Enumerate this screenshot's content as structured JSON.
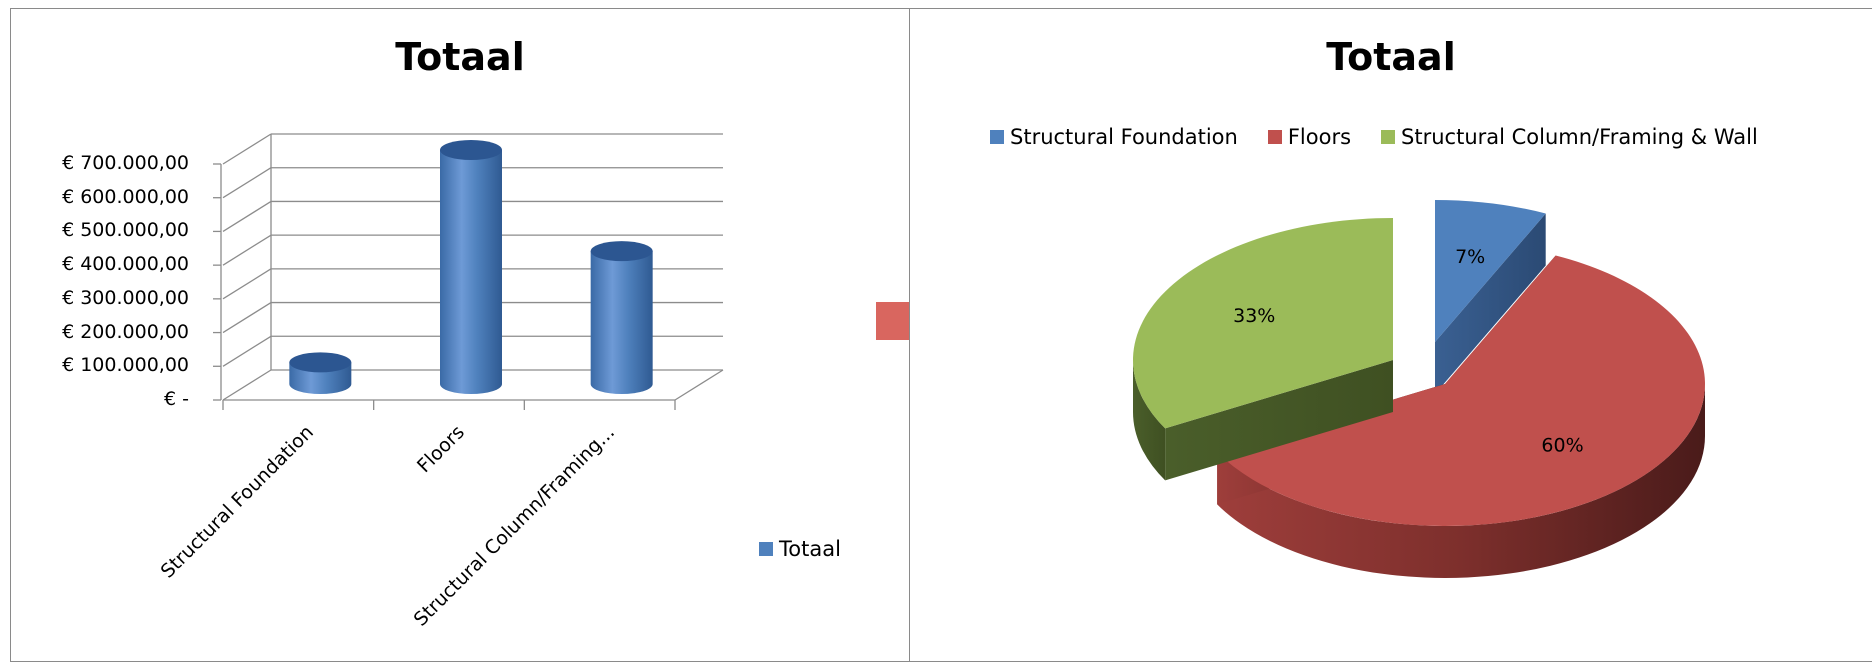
{
  "chart_data": [
    {
      "type": "bar",
      "style": "3d-cylinder",
      "title": "Totaal",
      "categories": [
        "Structural Foundation",
        "Floors",
        "Structural Column/Framing..."
      ],
      "series": [
        {
          "name": "Totaal",
          "color": "#4F81BD",
          "values": [
            70000,
            700000,
            400000
          ]
        }
      ],
      "y_tick_labels": [
        "€ -",
        "€ 100.000,00",
        "€ 200.000,00",
        "€ 300.000,00",
        "€ 400.000,00",
        "€ 500.000,00",
        "€ 600.000,00",
        "€ 700.000,00"
      ],
      "ylim": [
        0,
        700000
      ],
      "grid": true,
      "legend_position": "right"
    },
    {
      "type": "pie",
      "style": "3d-exploded",
      "title": "Totaal",
      "labels": [
        "Structural Foundation",
        "Floors",
        "Structural Column/Framing & Wall"
      ],
      "values": [
        7,
        60,
        33
      ],
      "data_labels": [
        "7%",
        "60%",
        "33%"
      ],
      "colors": [
        "#4F81BD",
        "#C0504D",
        "#9BBB59"
      ],
      "legend_position": "top"
    }
  ],
  "arrow_color": "#D9665F"
}
